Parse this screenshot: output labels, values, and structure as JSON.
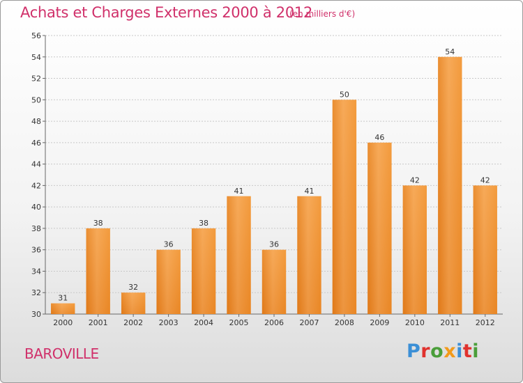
{
  "header": {
    "title": "Achats et Charges Externes 2000 à 2012",
    "unit": "(en milliers d'€)"
  },
  "commune": "BAROVILLE",
  "logo": {
    "text": "Proxiti",
    "letter_colors": [
      "#3b8fd6",
      "#e0322e",
      "#4a9e3a",
      "#f29a1a",
      "#3b8fd6",
      "#e0322e",
      "#4a9e3a"
    ]
  },
  "chart_data": {
    "type": "bar",
    "title": "Achats et Charges Externes 2000 à 2012",
    "subtitle": "(en milliers d'€)",
    "categories": [
      "2000",
      "2001",
      "2002",
      "2003",
      "2004",
      "2005",
      "2006",
      "2007",
      "2008",
      "2009",
      "2010",
      "2011",
      "2012"
    ],
    "values": [
      31,
      38,
      32,
      36,
      38,
      41,
      36,
      41,
      50,
      46,
      42,
      54,
      42
    ],
    "ylim": [
      30,
      56
    ],
    "yticks": [
      30,
      32,
      34,
      36,
      38,
      40,
      42,
      44,
      46,
      48,
      50,
      52,
      54,
      56
    ],
    "xlabel": "",
    "ylabel": "",
    "grid": true,
    "bar_color": "#f0922e",
    "bar_color_light": "#f7ad60",
    "bar_color_dark": "#e07a18",
    "grid_color": "#c8c8c8"
  }
}
